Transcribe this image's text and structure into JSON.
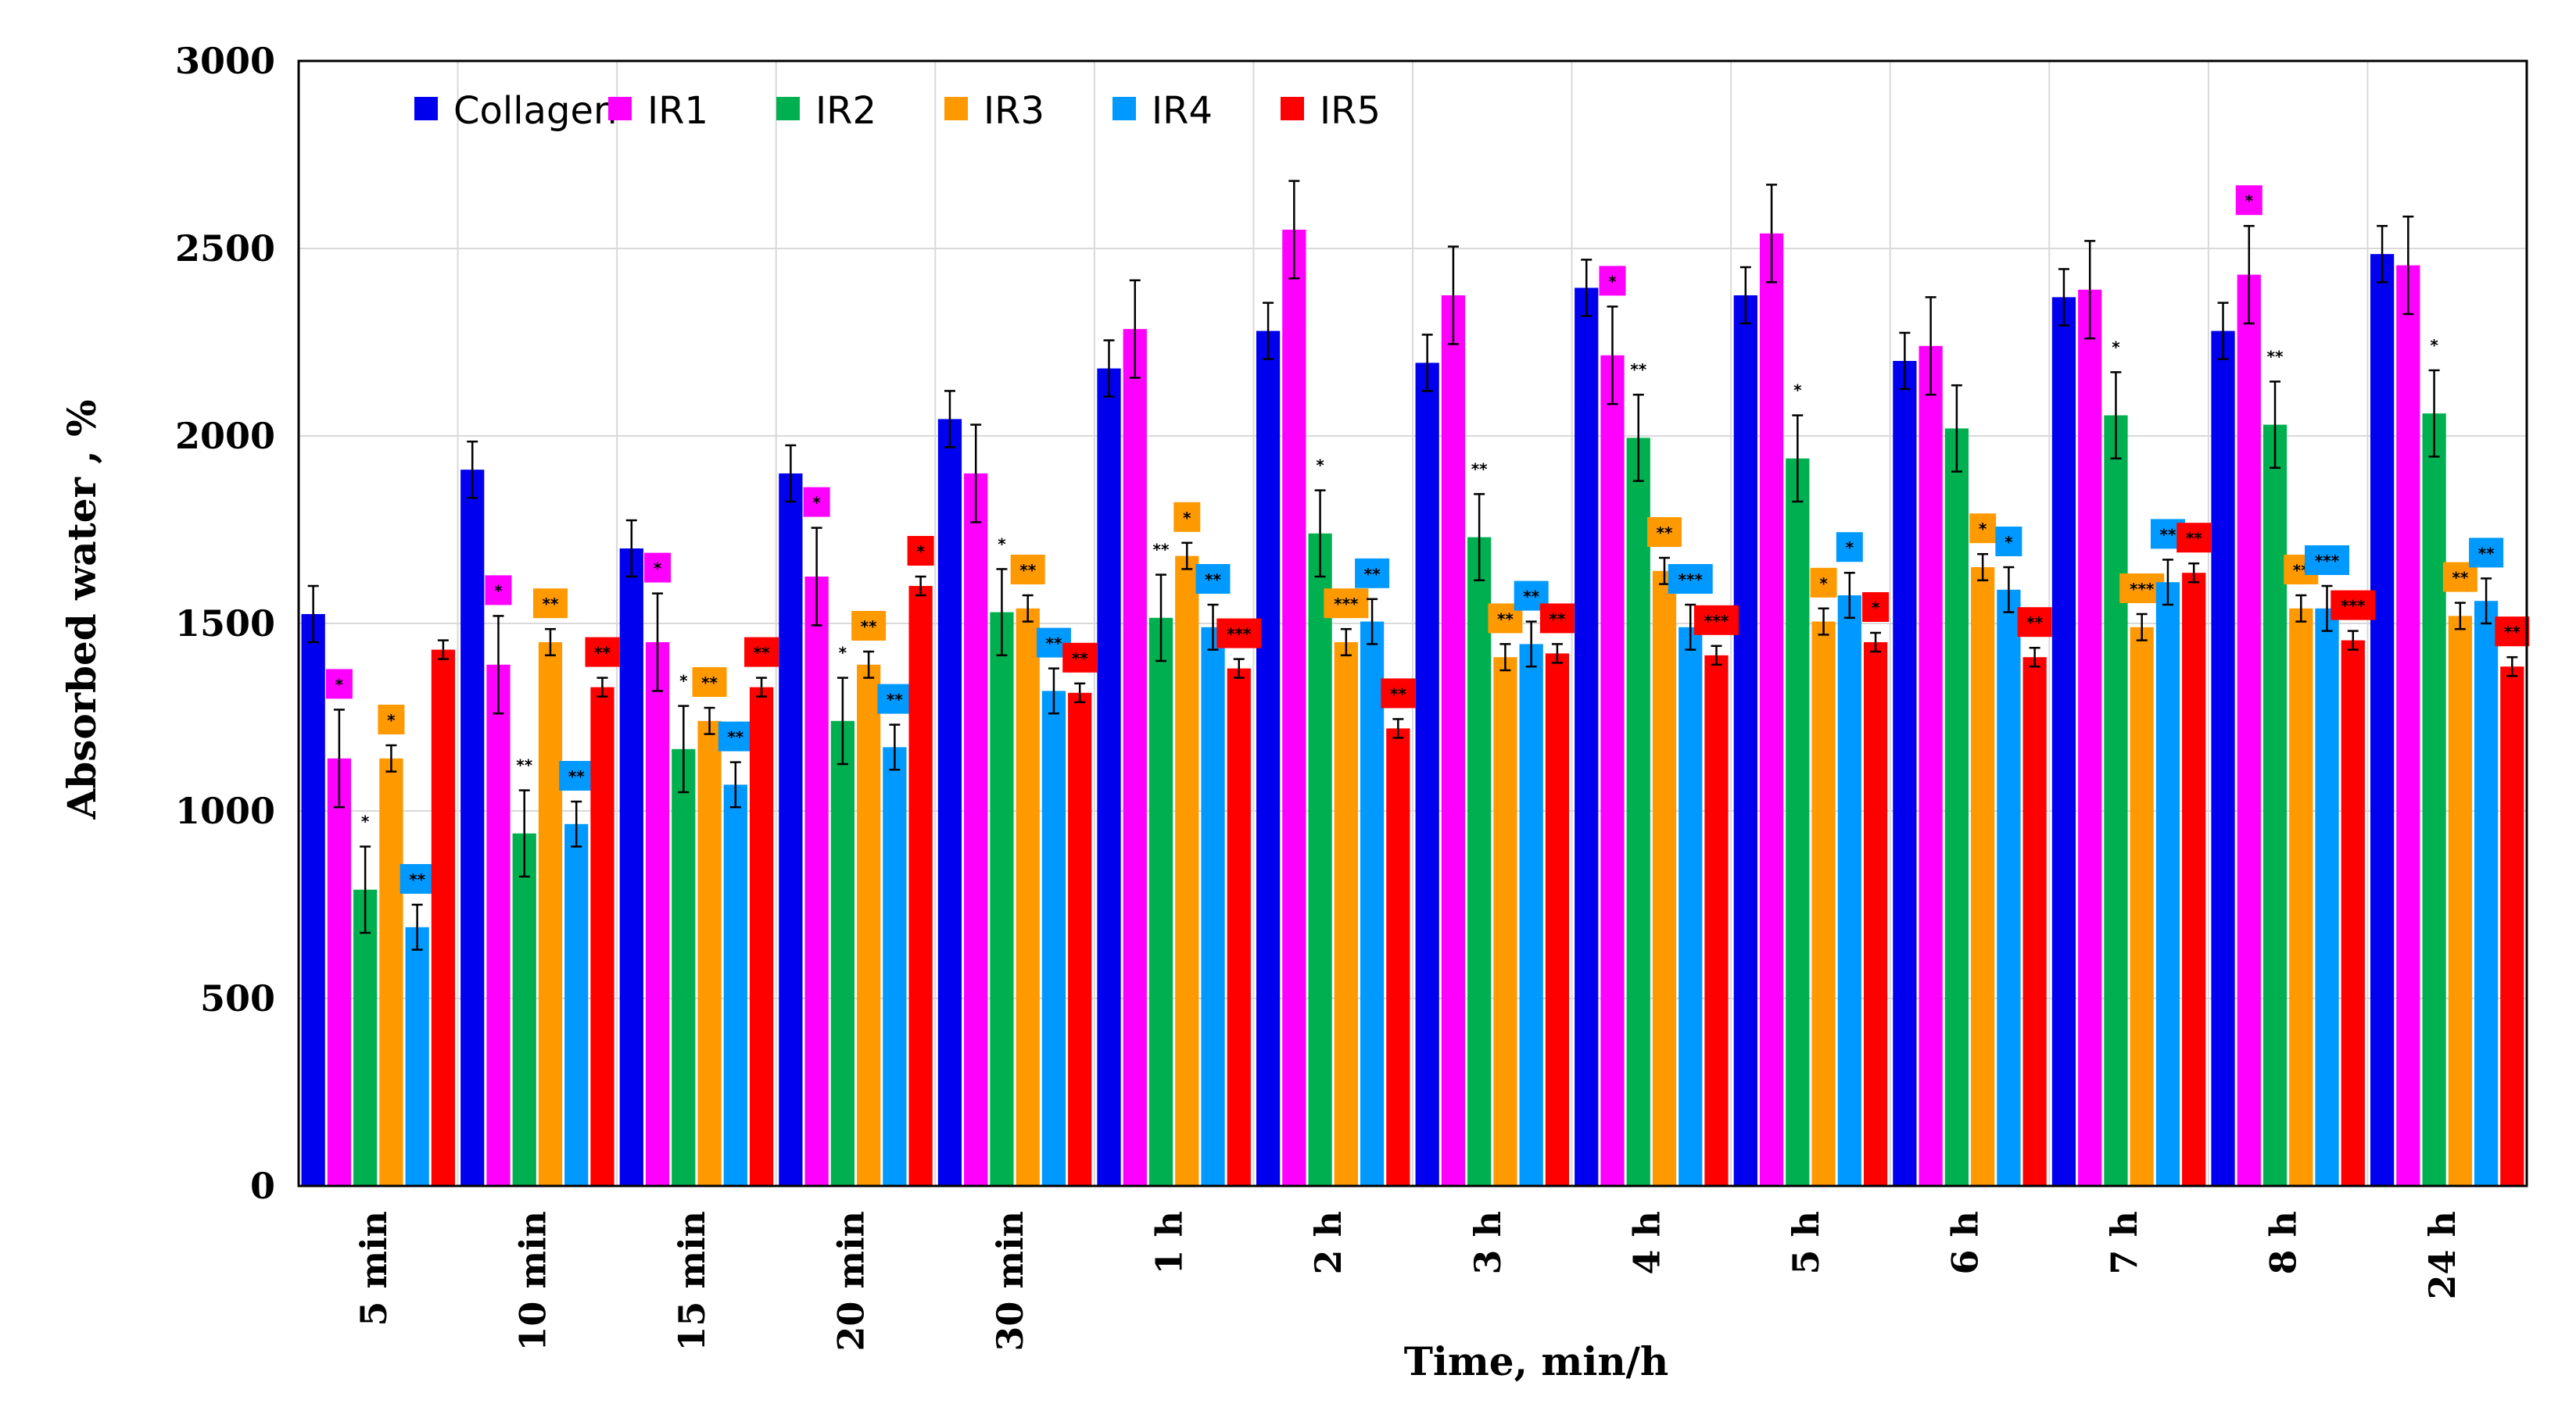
{
  "chart_data": {
    "type": "bar",
    "title": "",
    "xlabel": "Time, min/h",
    "ylabel": "Absorbed water , %",
    "ylim": [
      0,
      3000
    ],
    "yticks": [
      "0",
      "500",
      "1000",
      "1500",
      "2000",
      "2500",
      "3000"
    ],
    "grid": true,
    "legend_position": "top-left",
    "categories": [
      "5 min",
      "10 min",
      "15 min",
      "20 min",
      "30 min",
      "1 h",
      "2 h",
      "3 h",
      "4 h",
      "5 h",
      "6 h",
      "7 h",
      "8 h",
      "24 h"
    ],
    "series": [
      {
        "name": "Collagen",
        "color": "#0000ee",
        "values": [
          1525,
          1910,
          1700,
          1900,
          2045,
          2180,
          2280,
          2195,
          2395,
          2375,
          2200,
          2370,
          2280,
          2485
        ],
        "errors": [
          75,
          75,
          75,
          75,
          75,
          75,
          75,
          75,
          75,
          75,
          75,
          75,
          75,
          75
        ],
        "sig": [
          "",
          "",
          "",
          "",
          "",
          "",
          "",
          "",
          "",
          "",
          "",
          "",
          "",
          ""
        ]
      },
      {
        "name": "IR1",
        "color": "#ff00ff",
        "values": [
          1140,
          1390,
          1450,
          1625,
          1900,
          2285,
          2550,
          2375,
          2215,
          2540,
          2240,
          2390,
          2430,
          2455
        ],
        "errors": [
          130,
          130,
          130,
          130,
          130,
          130,
          130,
          130,
          130,
          130,
          130,
          130,
          130,
          130
        ],
        "sig": [
          "*",
          "*",
          "*",
          "*",
          "",
          "",
          "",
          "",
          "*",
          "",
          "",
          "",
          "*",
          ""
        ]
      },
      {
        "name": "IR2",
        "color": "#00b050",
        "values": [
          790,
          940,
          1165,
          1240,
          1530,
          1515,
          1740,
          1730,
          1995,
          1940,
          2020,
          2055,
          2030,
          2060
        ],
        "errors": [
          115,
          115,
          115,
          115,
          115,
          115,
          115,
          115,
          115,
          115,
          115,
          115,
          115,
          115
        ],
        "sig": [
          "*",
          "**",
          "*",
          "*",
          "*",
          "**",
          "*",
          "**",
          "**",
          "*",
          "",
          "*",
          "**",
          "*"
        ]
      },
      {
        "name": "IR3",
        "color": "#ff9900",
        "values": [
          1140,
          1450,
          1240,
          1390,
          1540,
          1680,
          1450,
          1410,
          1640,
          1505,
          1650,
          1490,
          1540,
          1520
        ],
        "errors": [
          35,
          35,
          35,
          35,
          35,
          35,
          35,
          35,
          35,
          35,
          35,
          35,
          35,
          35
        ],
        "sig": [
          "*",
          "**",
          "**",
          "**",
          "**",
          "*",
          "***",
          "**",
          "**",
          "*",
          "*",
          "***",
          "**",
          "**"
        ]
      },
      {
        "name": "IR4",
        "color": "#0099ff",
        "values": [
          690,
          965,
          1070,
          1170,
          1320,
          1490,
          1505,
          1445,
          1490,
          1575,
          1590,
          1610,
          1540,
          1560
        ],
        "errors": [
          60,
          60,
          60,
          60,
          60,
          60,
          60,
          60,
          60,
          60,
          60,
          60,
          60,
          60
        ],
        "sig": [
          "**",
          "**",
          "**",
          "**",
          "**",
          "**",
          "**",
          "**",
          "***",
          "*",
          "*",
          "**",
          "***",
          "**"
        ]
      },
      {
        "name": "IR5",
        "color": "#ff0000",
        "values": [
          1430,
          1330,
          1330,
          1600,
          1315,
          1380,
          1220,
          1420,
          1415,
          1450,
          1410,
          1635,
          1455,
          1385
        ],
        "errors": [
          25,
          25,
          25,
          25,
          25,
          25,
          25,
          25,
          25,
          25,
          25,
          25,
          25,
          25
        ],
        "sig": [
          "",
          "**",
          "**",
          "*",
          "**",
          "***",
          "**",
          "**",
          "***",
          "*",
          "**",
          "**",
          "***",
          "**"
        ]
      }
    ]
  }
}
